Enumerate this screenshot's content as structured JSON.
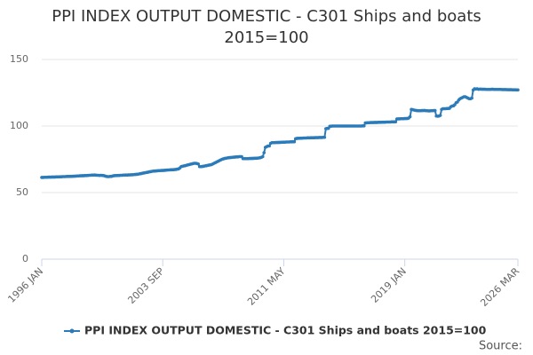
{
  "chart_data": {
    "type": "line",
    "title": [
      "PPI INDEX OUTPUT DOMESTIC - C301 Ships and boats",
      "2015=100"
    ],
    "source": "Source:",
    "categories": [
      "1996 JAN",
      null,
      null,
      null,
      null,
      null,
      null,
      null,
      null,
      null,
      null,
      null,
      null,
      null,
      null,
      null,
      null,
      null,
      null,
      null,
      null,
      null,
      null,
      null,
      null,
      null,
      null,
      null,
      null,
      null,
      null,
      null,
      null,
      null,
      null,
      null,
      null,
      null,
      null,
      null,
      null,
      null,
      null,
      null,
      null,
      null,
      null,
      null,
      null,
      null,
      null,
      null,
      null,
      null,
      null,
      null,
      null,
      null,
      null,
      null,
      null,
      null,
      null,
      null,
      null,
      null,
      null,
      null,
      null,
      null,
      null,
      null,
      null,
      null,
      null,
      null,
      null,
      null,
      null,
      null,
      null,
      null,
      null,
      null,
      null,
      null,
      null,
      null,
      null,
      null,
      null,
      null,
      "2003 SEP",
      null,
      null,
      null,
      null,
      null,
      null,
      null,
      null,
      null,
      null,
      null,
      null,
      null,
      null,
      null,
      null,
      null,
      null,
      null,
      null,
      null,
      null,
      null,
      null,
      null,
      null,
      null,
      null,
      null,
      null,
      null,
      null,
      null,
      null,
      null,
      null,
      null,
      null,
      null,
      null,
      null,
      null,
      null,
      null,
      null,
      null,
      null,
      null,
      null,
      null,
      null,
      null,
      null,
      null,
      null,
      null,
      null,
      null,
      null,
      null,
      null,
      null,
      null,
      null,
      null,
      null,
      null,
      null,
      null,
      null,
      null,
      null,
      null,
      null,
      null,
      null,
      null,
      null,
      null,
      null,
      null,
      null,
      null,
      null,
      null,
      null,
      null,
      null,
      null,
      null,
      null,
      "2011 MAY",
      null,
      null,
      null,
      null,
      null,
      null,
      null,
      null,
      null,
      null,
      null,
      null,
      null,
      null,
      null,
      null,
      null,
      null,
      null,
      null,
      null,
      null,
      null,
      null,
      null,
      null,
      null,
      null,
      null,
      null,
      null,
      null,
      null,
      null,
      null,
      null,
      null,
      null,
      null,
      null,
      null,
      null,
      null,
      null,
      null,
      null,
      null,
      null,
      null,
      null,
      null,
      null,
      null,
      null,
      null,
      null,
      null,
      null,
      null,
      null,
      null,
      null,
      null,
      null,
      null,
      null,
      null,
      null,
      null,
      null,
      null,
      null,
      null,
      null,
      null,
      null,
      null,
      null,
      null,
      null,
      null,
      null,
      null,
      null,
      null,
      null,
      null,
      null,
      null,
      null,
      null,
      "2019 JAN",
      null,
      null,
      null,
      null,
      null,
      null,
      null,
      null,
      null,
      null,
      null,
      null,
      null,
      null,
      null,
      null,
      null,
      null,
      null,
      null,
      null,
      null,
      null,
      null,
      null,
      null,
      null,
      null,
      null,
      null,
      null,
      null,
      null,
      null,
      null,
      null,
      null,
      null,
      null,
      null,
      null,
      null,
      null,
      null,
      null,
      null,
      null,
      null,
      null,
      null,
      null,
      null,
      null,
      null,
      null,
      null,
      null,
      null,
      null,
      null,
      null,
      null,
      null,
      null,
      null,
      null,
      null,
      null,
      null,
      null,
      null,
      null,
      null,
      null,
      null,
      null,
      null,
      null,
      null,
      null,
      null,
      null,
      null,
      null,
      null,
      "2026 MAR"
    ],
    "series": [
      {
        "name": "PPI INDEX OUTPUT DOMESTIC - C301 Ships and boats 2015=100",
        "color": "#2b7bba",
        "values": [
          61.4,
          61.4,
          61.5,
          61.5,
          61.5,
          61.6,
          61.6,
          61.6,
          61.7,
          61.7,
          61.7,
          61.8,
          61.8,
          61.8,
          61.9,
          61.9,
          62.0,
          62.0,
          62.0,
          62.1,
          62.1,
          62.1,
          62.2,
          62.2,
          62.3,
          62.3,
          62.4,
          62.5,
          62.5,
          62.6,
          62.6,
          62.7,
          62.7,
          62.8,
          62.8,
          62.9,
          63.0,
          63.0,
          63.1,
          63.1,
          63.2,
          63.1,
          63.0,
          63.0,
          62.9,
          63.0,
          62.9,
          62.8,
          62.5,
          62.2,
          62.0,
          62.0,
          62.1,
          62.2,
          62.5,
          62.7,
          62.8,
          62.8,
          62.9,
          62.9,
          63.0,
          63.0,
          63.1,
          63.1,
          63.2,
          63.2,
          63.3,
          63.3,
          63.4,
          63.4,
          63.5,
          63.6,
          63.7,
          63.8,
          64.0,
          64.2,
          64.4,
          64.6,
          64.8,
          65.0,
          65.2,
          65.4,
          65.6,
          65.8,
          66.0,
          66.1,
          66.2,
          66.3,
          66.4,
          66.5,
          66.5,
          66.6,
          66.6,
          66.7,
          66.8,
          66.9,
          67.0,
          67.0,
          67.1,
          67.1,
          67.2,
          67.3,
          67.4,
          67.6,
          67.8,
          68.5,
          69.5,
          69.8,
          70.0,
          70.2,
          70.5,
          70.8,
          71.0,
          71.3,
          71.5,
          71.8,
          72.0,
          72.0,
          71.8,
          71.5,
          69.5,
          69.5,
          69.6,
          69.8,
          70.0,
          70.2,
          70.4,
          70.6,
          70.8,
          71.0,
          71.5,
          72.0,
          72.5,
          73.0,
          73.5,
          74.0,
          74.5,
          75.0,
          75.3,
          75.6,
          75.8,
          76.0,
          76.2,
          76.3,
          76.4,
          76.5,
          76.6,
          76.7,
          76.8,
          76.8,
          77.0,
          77.0,
          77.0,
          75.5,
          75.5,
          75.5,
          75.5,
          75.5,
          75.6,
          75.6,
          75.7,
          75.7,
          75.8,
          75.8,
          75.9,
          76.0,
          76.2,
          76.5,
          77.0,
          80.0,
          84.0,
          84.5,
          85.0,
          85.0,
          87.0,
          87.5,
          87.5,
          87.5,
          87.6,
          87.6,
          87.7,
          87.7,
          87.8,
          87.8,
          87.9,
          87.9,
          88.0,
          88.0,
          88.0,
          88.1,
          88.1,
          88.2,
          88.2,
          90.5,
          90.7,
          90.8,
          90.8,
          90.9,
          90.9,
          91.0,
          91.0,
          91.0,
          91.1,
          91.1,
          91.1,
          91.2,
          91.2,
          91.2,
          91.3,
          91.3,
          91.3,
          91.4,
          91.4,
          91.4,
          91.5,
          91.5,
          98.0,
          98.2,
          98.3,
          99.8,
          99.9,
          100.0,
          100.0,
          100.0,
          100.0,
          100.0,
          100.0,
          100.0,
          100.0,
          100.0,
          100.0,
          100.0,
          100.0,
          100.0,
          100.0,
          100.0,
          100.0,
          100.0,
          100.0,
          100.0,
          100.0,
          100.0,
          100.0,
          100.0,
          100.1,
          100.1,
          102.3,
          102.4,
          102.5,
          102.5,
          102.6,
          102.6,
          102.6,
          102.7,
          102.7,
          102.7,
          102.8,
          102.8,
          102.8,
          102.9,
          102.9,
          102.9,
          103.0,
          103.0,
          103.0,
          103.0,
          103.1,
          103.1,
          103.1,
          103.2,
          105.3,
          105.4,
          105.4,
          105.5,
          105.5,
          105.5,
          105.6,
          105.6,
          105.7,
          106.0,
          107.0,
          112.5,
          112.3,
          112.0,
          111.8,
          111.6,
          111.5,
          111.5,
          111.5,
          111.6,
          111.6,
          111.7,
          111.5,
          111.5,
          111.4,
          111.4,
          111.5,
          111.5,
          111.6,
          111.6,
          107.5,
          107.4,
          107.5,
          108.0,
          112.5,
          113.0,
          113.0,
          113.0,
          113.1,
          113.2,
          113.3,
          114.5,
          115.0,
          115.2,
          116.0,
          117.5,
          118.0,
          119.5,
          120.5,
          121.0,
          121.5,
          122.0,
          122.0,
          121.5,
          121.0,
          120.5,
          120.5,
          121.0,
          127.0,
          128.0,
          127.8,
          128.0,
          127.6,
          127.7,
          127.7,
          127.6,
          127.6,
          127.6,
          127.5,
          127.5,
          127.5,
          127.5,
          127.6,
          127.6,
          127.5,
          127.5,
          127.5,
          127.5,
          127.5,
          127.5,
          127.4,
          127.4,
          127.4,
          127.4,
          127.3,
          127.3,
          127.3,
          127.3,
          127.2,
          127.2,
          127.2,
          127.1,
          127.1
        ]
      }
    ],
    "ylim": [
      0,
      150
    ],
    "yticks": [
      0,
      50,
      100,
      150
    ],
    "grid": true
  }
}
